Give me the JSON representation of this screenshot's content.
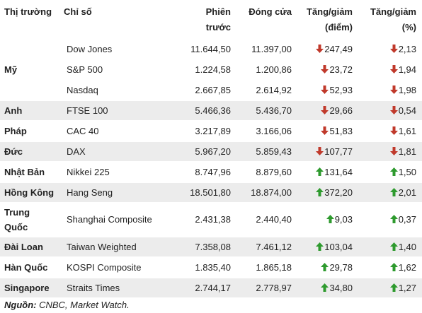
{
  "headers": {
    "market": "Thị trường",
    "index": "Chỉ số",
    "prev_line1": "Phiên",
    "prev_line2": "trước",
    "close": "Đóng cửa",
    "chg_pts_line1": "Tăng/giảm",
    "chg_pts_line2": "(điểm)",
    "chg_pct_line1": "Tăng/giảm",
    "chg_pct_line2": "(%)"
  },
  "groups": [
    {
      "region": "Mỹ",
      "shade": false,
      "rows": [
        {
          "index": "Dow Jones",
          "prev": "11.644,50",
          "close": "11.397,00",
          "chg_pts": "247,49",
          "chg_pct": "2,13",
          "direction": "down"
        },
        {
          "index": "S&P 500",
          "prev": "1.224,58",
          "close": "1.200,86",
          "chg_pts": "23,72",
          "chg_pct": "1,94",
          "direction": "down"
        },
        {
          "index": "Nasdaq",
          "prev": "2.667,85",
          "close": "2.614,92",
          "chg_pts": "52,93",
          "chg_pct": "1,98",
          "direction": "down"
        }
      ]
    },
    {
      "region": "Anh",
      "shade": true,
      "rows": [
        {
          "index": "FTSE 100",
          "prev": "5.466,36",
          "close": "5.436,70",
          "chg_pts": "29,66",
          "chg_pct": "0,54",
          "direction": "down"
        }
      ]
    },
    {
      "region": "Pháp",
      "shade": false,
      "rows": [
        {
          "index": "CAC 40",
          "prev": "3.217,89",
          "close": "3.166,06",
          "chg_pts": "51,83",
          "chg_pct": "1,61",
          "direction": "down"
        }
      ]
    },
    {
      "region": "Đức",
      "shade": true,
      "rows": [
        {
          "index": "DAX",
          "prev": "5.967,20",
          "close": "5.859,43",
          "chg_pts": "107,77",
          "chg_pct": "1,81",
          "direction": "down"
        }
      ]
    },
    {
      "region": "Nhật Bản",
      "shade": false,
      "rows": [
        {
          "index": "Nikkei 225",
          "prev": "8.747,96",
          "close": "8.879,60",
          "chg_pts": "131,64",
          "chg_pct": "1,50",
          "direction": "up"
        }
      ]
    },
    {
      "region": "Hồng Kông",
      "shade": true,
      "rows": [
        {
          "index": "Hang Seng",
          "prev": "18.501,80",
          "close": "18.874,00",
          "chg_pts": "372,20",
          "chg_pct": "2,01",
          "direction": "up"
        }
      ]
    },
    {
      "region": "Trung Quốc",
      "shade": false,
      "rows": [
        {
          "index": "Shanghai Composite",
          "prev": "2.431,38",
          "close": "2.440,40",
          "chg_pts": "9,03",
          "chg_pct": "0,37",
          "direction": "up"
        }
      ]
    },
    {
      "region": "Đài Loan",
      "shade": true,
      "rows": [
        {
          "index": "Taiwan Weighted",
          "prev": "7.358,08",
          "close": "7.461,12",
          "chg_pts": "103,04",
          "chg_pct": "1,40",
          "direction": "up"
        }
      ]
    },
    {
      "region": "Hàn Quốc",
      "shade": false,
      "rows": [
        {
          "index": "KOSPI Composite",
          "prev": "1.835,40",
          "close": "1.865,18",
          "chg_pts": "29,78",
          "chg_pct": "1,62",
          "direction": "up"
        }
      ]
    },
    {
      "region": "Singapore",
      "shade": true,
      "rows": [
        {
          "index": "Straits Times",
          "prev": "2.744,17",
          "close": "2.778,97",
          "chg_pts": "34,80",
          "chg_pct": "1,27",
          "direction": "up"
        }
      ]
    }
  ],
  "source": {
    "label": "Nguồn:",
    "text": " CNBC, Market Watch."
  },
  "colors": {
    "up": "#2e9a2e",
    "down": "#c0392b",
    "shade": "#ececec"
  }
}
